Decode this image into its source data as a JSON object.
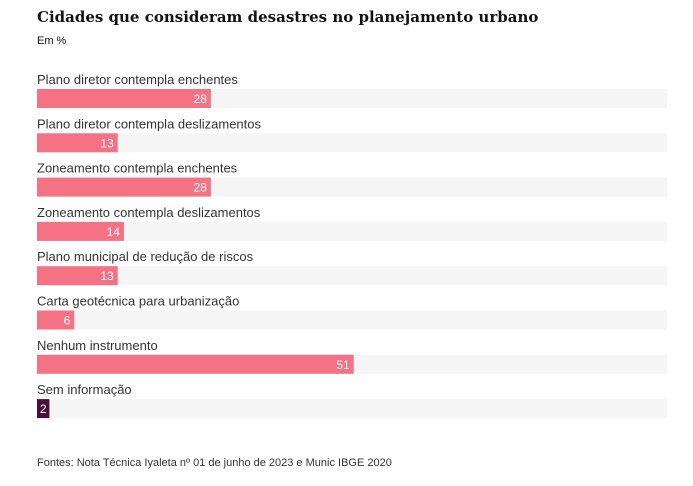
{
  "title": "Cidades que consideram desastres no planejamento urbano",
  "subtitle": "Em %",
  "source": "Fontes: Nota Técnica Iyaleta nº 01 de junho de 2023 e Munic IBGE 2020",
  "colors": {
    "bar": "#f47283",
    "highlight": "#4a0e3c",
    "track": "#f5f5f5"
  },
  "chart_data": {
    "type": "bar",
    "orientation": "horizontal",
    "categories": [
      "Plano diretor contempla enchentes",
      "Plano diretor contempla deslizamentos",
      "Zoneamento contempla enchentes",
      "Zoneamento contempla deslizamentos",
      "Plano municipal de redução de riscos",
      "Carta geotécnica para urbanização",
      "Nenhum instrumento",
      "Sem informação"
    ],
    "values": [
      28,
      13,
      28,
      14,
      13,
      6,
      51,
      2
    ],
    "highlighted": [
      false,
      false,
      false,
      false,
      false,
      false,
      false,
      true
    ],
    "title": "Cidades que consideram desastres no planejamento urbano",
    "xlabel": "",
    "ylabel": "",
    "xlim": [
      0,
      100
    ],
    "grid": false
  }
}
